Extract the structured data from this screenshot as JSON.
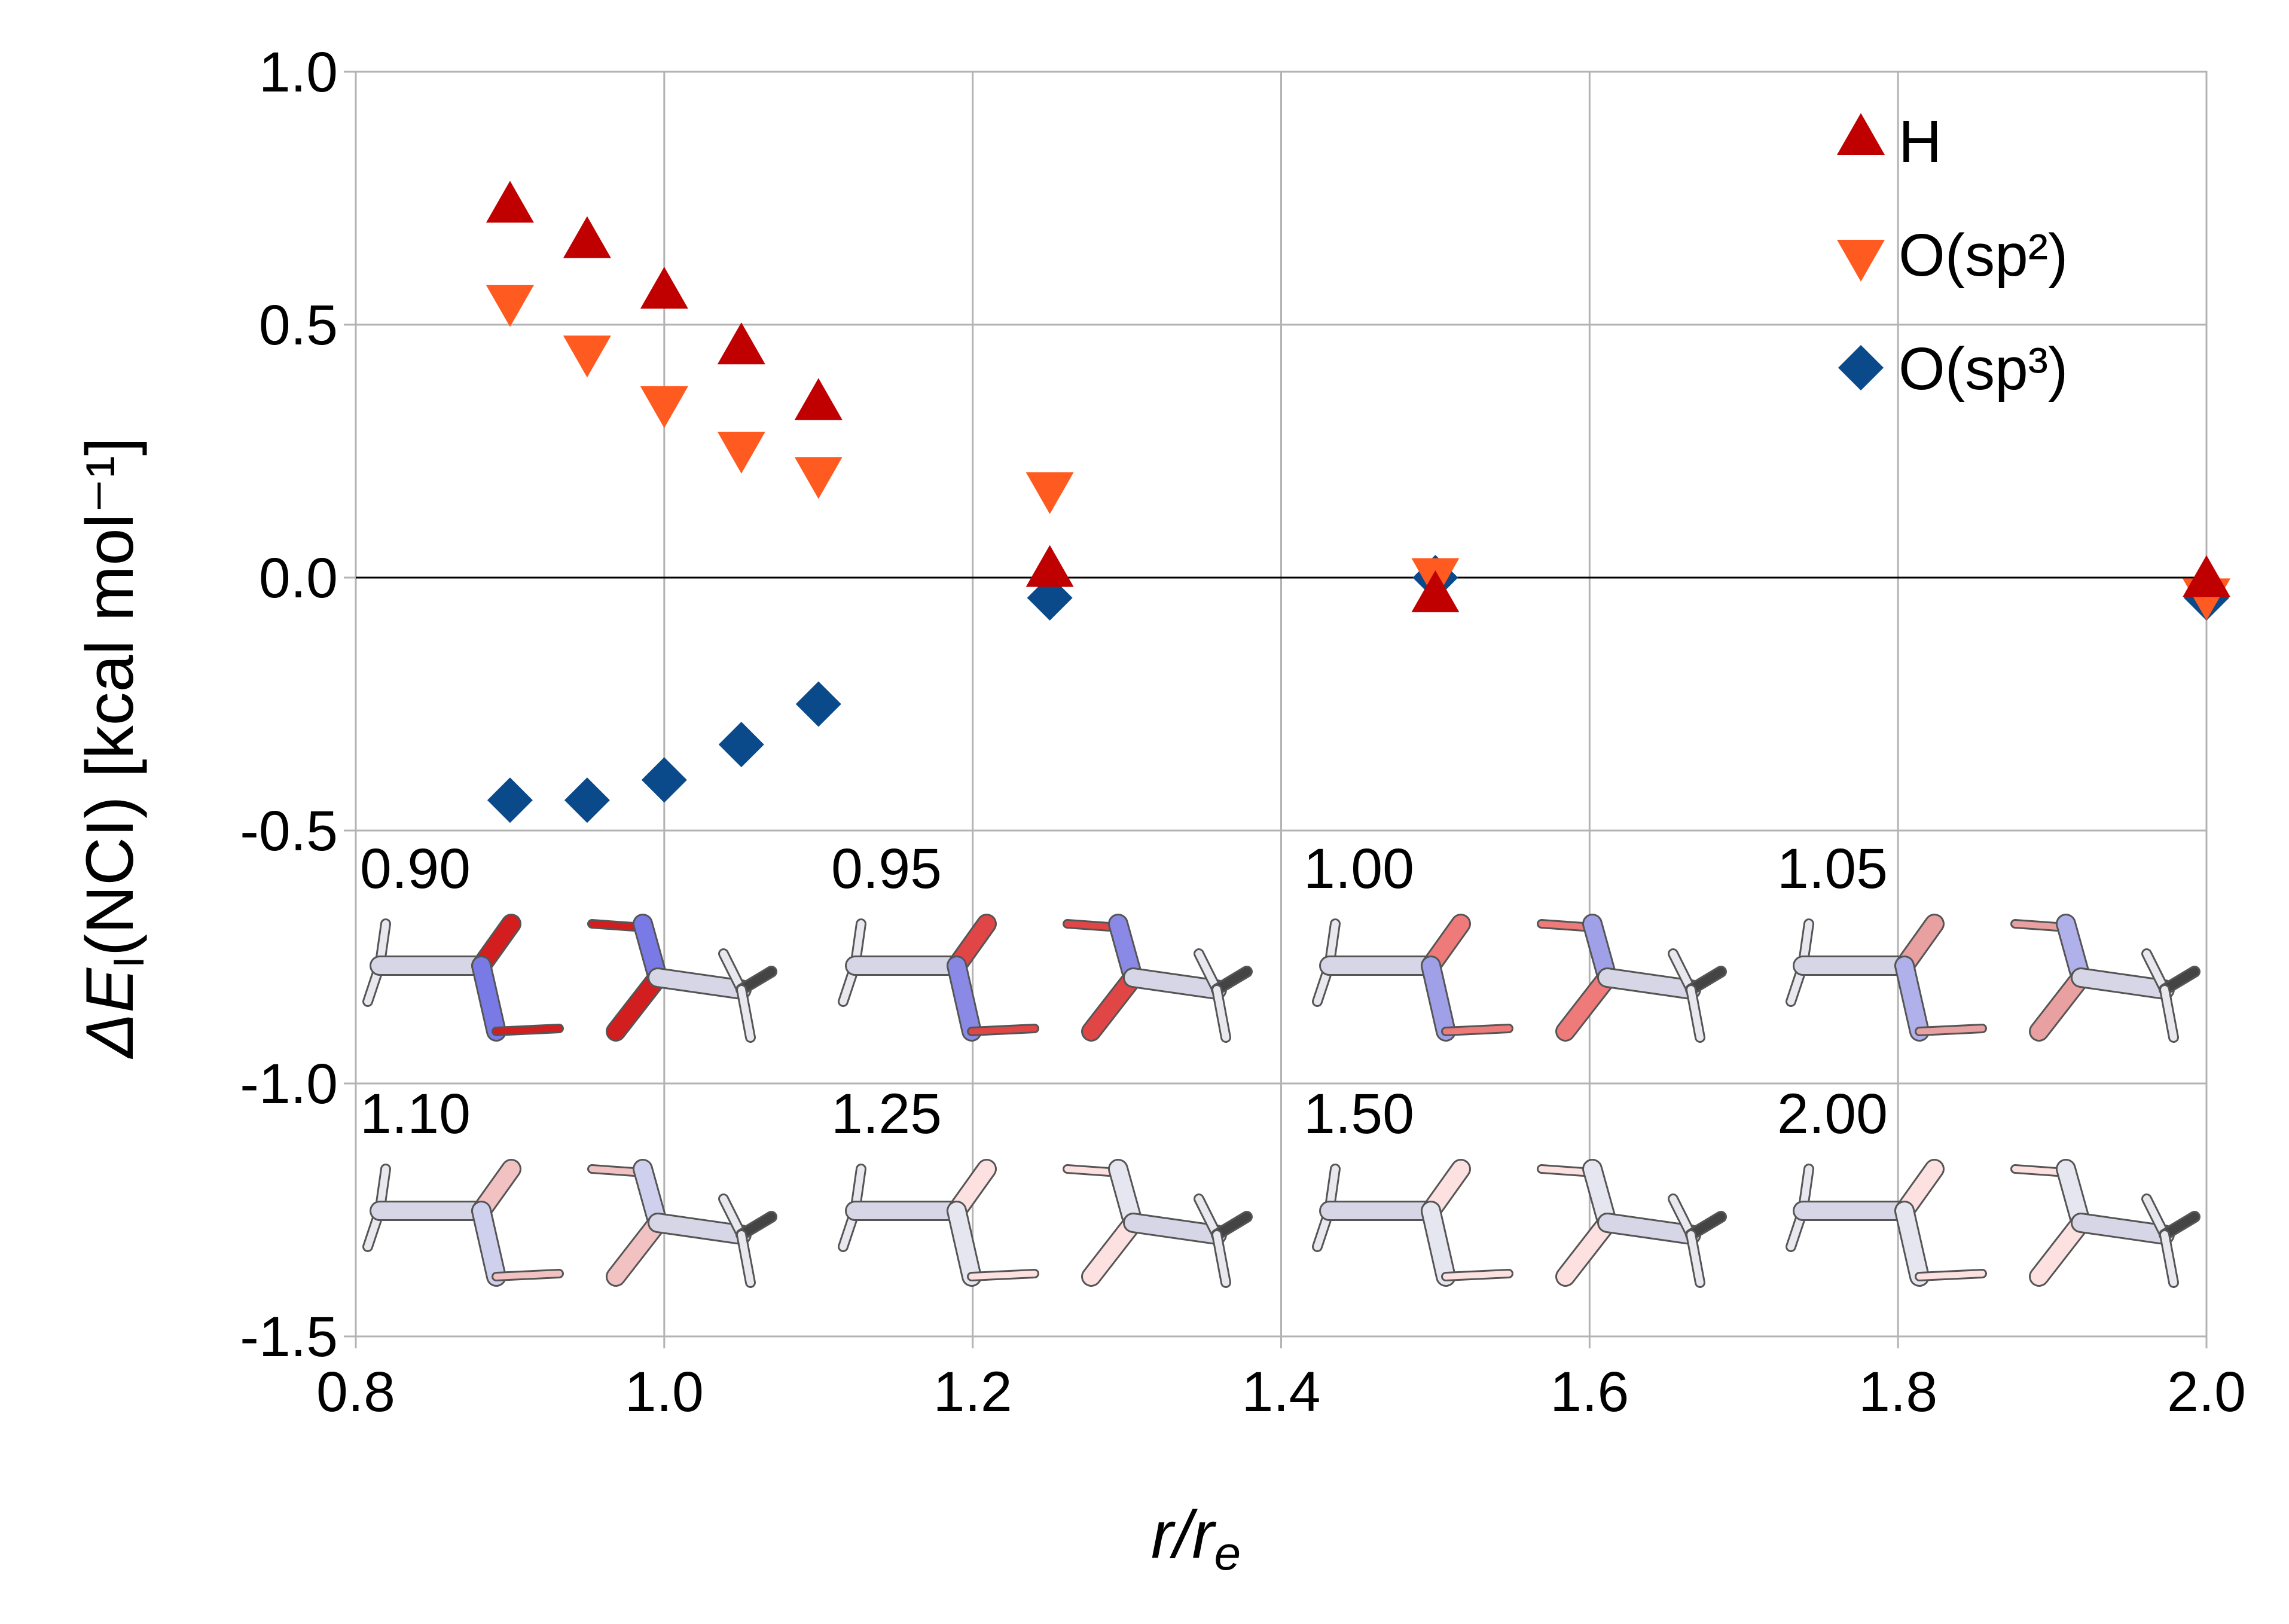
{
  "chart_data": {
    "type": "scatter",
    "title": "",
    "xlabel": "r/re",
    "xlabel_parts": {
      "main": "r/r",
      "sub": "e"
    },
    "ylabel": "ΔEI(NCI) [kcal mol⁻¹]",
    "ylabel_parts": {
      "delta": "ΔE",
      "sub": "I",
      "rest": "(NCI) [kcal mol⁻¹]"
    },
    "xlim": [
      0.8,
      2.0
    ],
    "ylim": [
      -1.5,
      1.0
    ],
    "xticks": [
      "0.8",
      "1.0",
      "1.2",
      "1.4",
      "1.6",
      "1.8",
      "2.0"
    ],
    "yticks": [
      "1.0",
      "0.5",
      "0.0",
      "-0.5",
      "-1.0",
      "-1.5"
    ],
    "grid": true,
    "legend_position": "top-right",
    "series": [
      {
        "name": "H",
        "marker": "triangle-up",
        "color": "#c00000",
        "x": [
          0.9,
          0.95,
          1.0,
          1.05,
          1.1,
          1.25,
          1.5,
          2.0
        ],
        "y": [
          0.73,
          0.66,
          0.56,
          0.45,
          0.34,
          0.01,
          -0.04,
          -0.01
        ]
      },
      {
        "name": "O(sp²)",
        "marker": "triangle-down",
        "color": "#ff5a1f",
        "x": [
          0.9,
          0.95,
          1.0,
          1.05,
          1.1,
          1.25,
          1.5,
          2.0
        ],
        "y": [
          0.55,
          0.45,
          0.35,
          0.26,
          0.21,
          0.18,
          0.01,
          -0.03
        ]
      },
      {
        "name": "O(sp³)",
        "marker": "diamond",
        "color": "#0a4a8a",
        "x": [
          0.9,
          0.95,
          1.0,
          1.05,
          1.1,
          1.25,
          1.5,
          2.0
        ],
        "y": [
          -0.44,
          -0.44,
          -0.4,
          -0.33,
          -0.25,
          -0.04,
          0.0,
          -0.04
        ]
      }
    ],
    "structure_labels": [
      "0.90",
      "0.95",
      "1.00",
      "1.05",
      "1.10",
      "1.25",
      "1.50",
      "2.00"
    ]
  }
}
